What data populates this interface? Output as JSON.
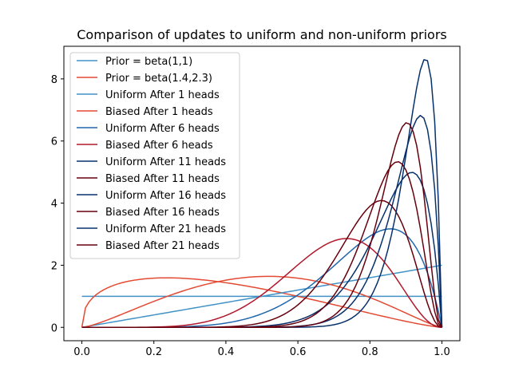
{
  "chart_data": {
    "type": "line",
    "title": "Comparison of updates to uniform and non-uniform priors",
    "xlabel": "",
    "ylabel": "",
    "xlim": [
      -0.05,
      1.05
    ],
    "ylim": [
      -0.43,
      9.05
    ],
    "xticks": [
      0.0,
      0.2,
      0.4,
      0.6,
      0.8,
      1.0
    ],
    "xtick_labels": [
      "0.0",
      "0.2",
      "0.4",
      "0.6",
      "0.8",
      "1.0"
    ],
    "yticks": [
      0,
      2,
      4,
      6,
      8
    ],
    "ytick_labels": [
      "0",
      "2",
      "4",
      "6",
      "8"
    ],
    "grid": false,
    "legend_position": "upper-left",
    "x_sampling": {
      "start": 0,
      "end": 1,
      "count": 101
    },
    "series": [
      {
        "name": "Prior = beta(1,1)",
        "alpha": 1,
        "beta": 1,
        "color": "#4292c6"
      },
      {
        "name": "Prior = beta(1.4,2.3)",
        "alpha": 1.4,
        "beta": 2.3,
        "color": "#e34a33"
      },
      {
        "name": "Uniform After 1 heads",
        "alpha": 2,
        "beta": 1,
        "color": "#4292c6"
      },
      {
        "name": "Biased After 1 heads",
        "alpha": 2.4,
        "beta": 2.3,
        "color": "#e34a33"
      },
      {
        "name": "Uniform After 6 heads",
        "alpha": 7,
        "beta": 2,
        "color": "#2166ac"
      },
      {
        "name": "Biased After 6 heads",
        "alpha": 7.4,
        "beta": 3.3,
        "color": "#b2182b"
      },
      {
        "name": "Uniform After 11 heads",
        "alpha": 12,
        "beta": 2,
        "color": "#08306b"
      },
      {
        "name": "Biased After 11 heads",
        "alpha": 12.4,
        "beta": 3.3,
        "color": "#67000d"
      },
      {
        "name": "Uniform After 16 heads",
        "alpha": 17,
        "beta": 2,
        "color": "#08306b"
      },
      {
        "name": "Biased After 16 heads",
        "alpha": 17.4,
        "beta": 3.3,
        "color": "#67000d"
      },
      {
        "name": "Uniform After 21 heads",
        "alpha": 22,
        "beta": 2,
        "color": "#08306b"
      },
      {
        "name": "Biased After 21 heads",
        "alpha": 22.4,
        "beta": 3.3,
        "color": "#67000d"
      }
    ]
  }
}
